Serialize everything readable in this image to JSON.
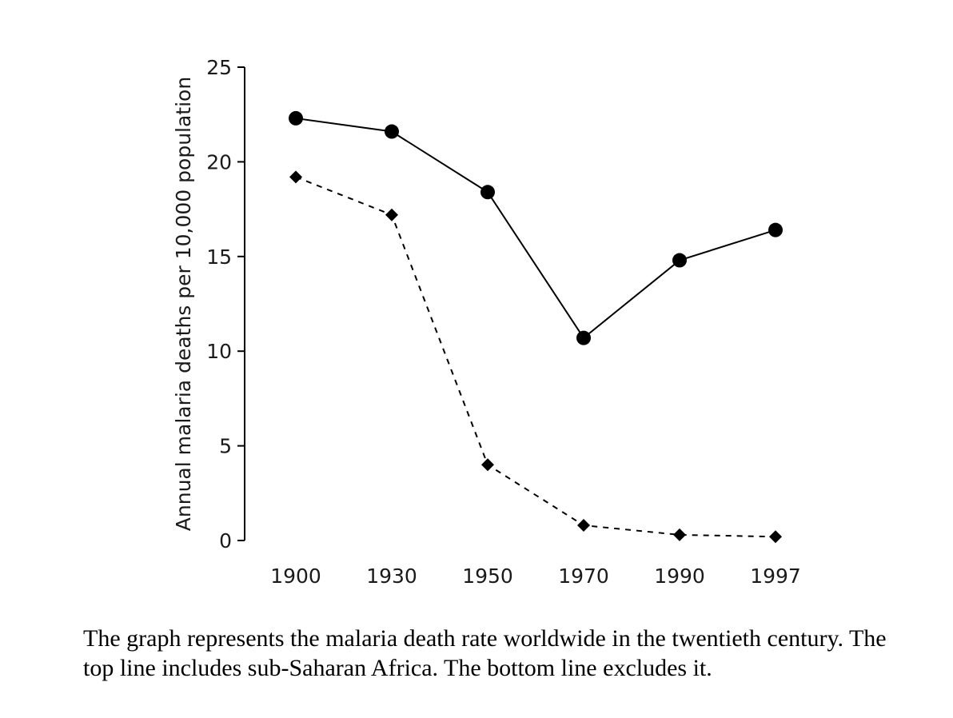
{
  "chart_data": {
    "type": "line",
    "categories": [
      "1900",
      "1930",
      "1950",
      "1970",
      "1990",
      "1997"
    ],
    "series": [
      {
        "values": [
          22.3,
          21.6,
          18.4,
          10.7,
          14.8,
          16.4
        ],
        "marker": "circle",
        "line_style": "solid",
        "color": "#000000"
      },
      {
        "values": [
          19.2,
          17.2,
          4.0,
          0.8,
          0.3,
          0.2
        ],
        "marker": "diamond",
        "line_style": "dashed",
        "color": "#000000"
      }
    ],
    "ylabel": "Annual malaria deaths per 10,000 population",
    "ylim": [
      0,
      25
    ],
    "yticks": [
      0,
      5,
      10,
      15,
      20,
      25
    ],
    "grid": false
  },
  "caption": "The graph represents the malaria death rate worldwide in the twentieth century. The top line includes sub-Saharan Africa. The bottom line excludes it."
}
